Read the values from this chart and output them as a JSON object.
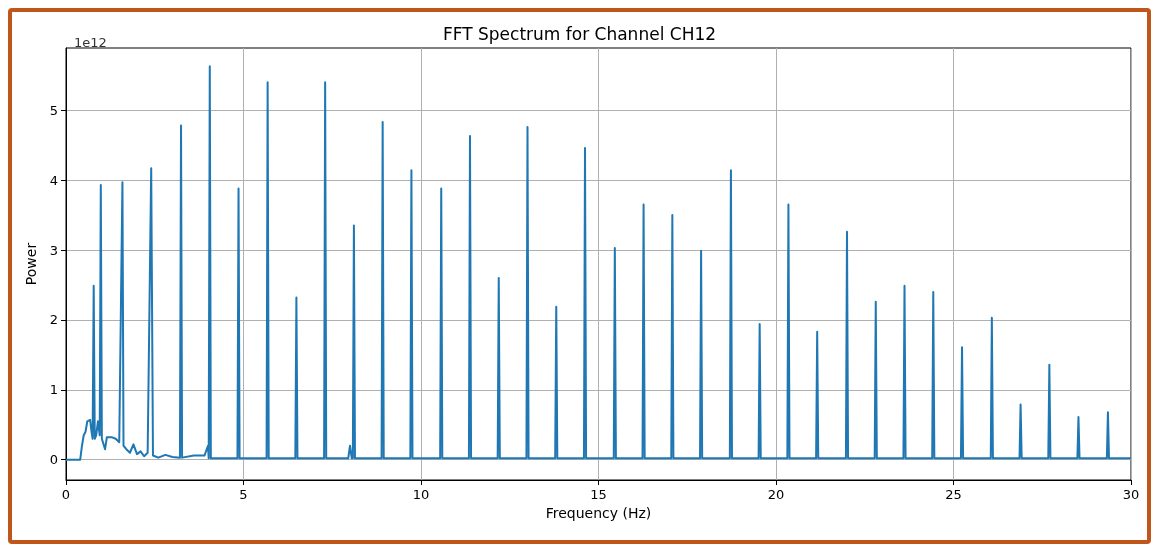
{
  "chart_data": {
    "type": "line",
    "title": "FFT Spectrum for Channel CH12",
    "xlabel": "Frequency (Hz)",
    "ylabel": "Power",
    "annotations": [
      "1e12"
    ],
    "color": "#1f77b4",
    "marker": "none",
    "grid": true,
    "xlim": [
      0,
      30
    ],
    "xticks": [
      0,
      5,
      10,
      15,
      20,
      25,
      30
    ],
    "ylim": [
      -0.29,
      5.89
    ],
    "yticks": [
      0,
      1,
      2,
      3,
      4,
      5
    ],
    "x": [
      0,
      0.4,
      0.45,
      0.5,
      0.55,
      0.6,
      0.68,
      0.72,
      0.75,
      0.78,
      0.81,
      0.85,
      0.9,
      0.95,
      0.98,
      1.01,
      1.1,
      1.15,
      1.3,
      1.4,
      1.5,
      1.59,
      1.62,
      1.7,
      1.8,
      1.9,
      2.0,
      2.1,
      2.2,
      2.3,
      2.4,
      2.45,
      2.6,
      2.8,
      3.0,
      3.21,
      3.24,
      3.27,
      3.6,
      3.9,
      4.0,
      4.02,
      4.05,
      4.08,
      4.83,
      4.86,
      4.89,
      5.65,
      5.68,
      5.71,
      6.46,
      6.49,
      6.52,
      7.27,
      7.3,
      7.33,
      7.95,
      8.0,
      8.05,
      8.08,
      8.11,
      8.14,
      8.89,
      8.92,
      8.95,
      9.7,
      9.73,
      9.76,
      10.54,
      10.57,
      10.6,
      11.35,
      11.38,
      11.41,
      12.16,
      12.19,
      12.22,
      12.97,
      13.0,
      13.03,
      13.78,
      13.81,
      13.84,
      14.59,
      14.62,
      14.65,
      15.43,
      15.46,
      15.49,
      16.24,
      16.27,
      16.3,
      17.05,
      17.08,
      17.11,
      17.86,
      17.89,
      17.92,
      18.7,
      18.73,
      18.76,
      19.51,
      19.54,
      19.57,
      20.32,
      20.35,
      20.38,
      21.13,
      21.16,
      21.19,
      21.97,
      22.0,
      22.03,
      22.78,
      22.81,
      22.84,
      23.59,
      23.62,
      23.65,
      24.4,
      24.43,
      24.46,
      25.21,
      25.24,
      25.27,
      26.05,
      26.08,
      26.11,
      26.86,
      26.89,
      26.92,
      27.67,
      27.7,
      27.73,
      28.49,
      28.52,
      28.55,
      29.32,
      29.35,
      29.38,
      30
    ],
    "values": [
      0,
      0,
      0.2,
      0.35,
      0.4,
      0.55,
      0.57,
      0.4,
      0.3,
      2.49,
      0.3,
      0.35,
      0.55,
      0.35,
      3.93,
      0.3,
      0.15,
      0.32,
      0.32,
      0.3,
      0.25,
      3.97,
      0.2,
      0.15,
      0.1,
      0.22,
      0.08,
      0.12,
      0.05,
      0.1,
      4.17,
      0.06,
      0.03,
      0.07,
      0.04,
      0.03,
      4.78,
      0.03,
      0.06,
      0.06,
      0.2,
      0.02,
      5.63,
      0.02,
      0.02,
      3.88,
      0.02,
      0.02,
      5.4,
      0.02,
      0.02,
      2.32,
      0.02,
      0.02,
      5.4,
      0.02,
      0.02,
      0.2,
      0.02,
      0.02,
      3.35,
      0.02,
      0.02,
      4.83,
      0.02,
      0.02,
      4.14,
      0.02,
      0.02,
      3.88,
      0.02,
      0.02,
      4.63,
      0.02,
      0.02,
      2.6,
      0.02,
      0.02,
      4.76,
      0.02,
      0.02,
      2.19,
      0.02,
      0.02,
      4.46,
      0.02,
      0.02,
      3.03,
      0.02,
      0.02,
      3.65,
      0.02,
      0.02,
      3.5,
      0.02,
      0.02,
      2.99,
      0.02,
      0.02,
      4.14,
      0.02,
      0.02,
      1.94,
      0.02,
      0.02,
      3.65,
      0.02,
      0.02,
      1.83,
      0.02,
      0.02,
      3.26,
      0.02,
      0.02,
      2.26,
      0.02,
      0.02,
      2.49,
      0.02,
      0.02,
      2.4,
      0.02,
      0.02,
      1.61,
      0.02,
      0.02,
      2.03,
      0.02,
      0.02,
      0.79,
      0.02,
      0.02,
      1.36,
      0.02,
      0.02,
      0.61,
      0.02,
      0.02,
      0.68,
      0.02,
      0.02
    ]
  }
}
